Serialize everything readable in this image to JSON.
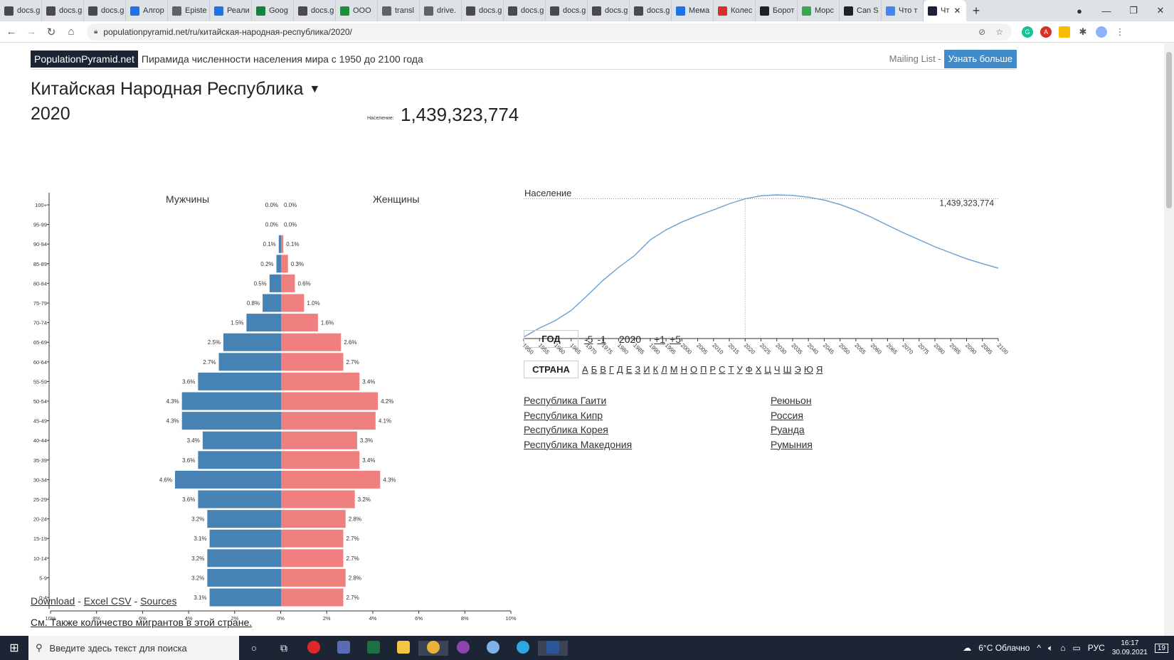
{
  "browser": {
    "tabs": [
      {
        "label": "docs.g",
        "color": "#4a4a4a"
      },
      {
        "label": "docs.g",
        "color": "#4a4a4a"
      },
      {
        "label": "docs.g",
        "color": "#4a4a4a"
      },
      {
        "label": "Алгор",
        "color": "#1a73e8"
      },
      {
        "label": "Episte",
        "color": "#5f6368"
      },
      {
        "label": "Реали",
        "color": "#1a73e8"
      },
      {
        "label": "Goog",
        "color": "#188038"
      },
      {
        "label": "docs.g",
        "color": "#4a4a4a"
      },
      {
        "label": "ООО",
        "color": "#1e8e3e"
      },
      {
        "label": "transl",
        "color": "#5f6368"
      },
      {
        "label": "drive.",
        "color": "#5f6368"
      },
      {
        "label": "docs.g",
        "color": "#4a4a4a"
      },
      {
        "label": "docs.g",
        "color": "#4a4a4a"
      },
      {
        "label": "docs.g",
        "color": "#4a4a4a"
      },
      {
        "label": "docs.g",
        "color": "#4a4a4a"
      },
      {
        "label": "docs.g",
        "color": "#4a4a4a"
      },
      {
        "label": "Мема",
        "color": "#1a73e8"
      },
      {
        "label": "Колес",
        "color": "#d93025"
      },
      {
        "label": "Борот",
        "color": "#202124"
      },
      {
        "label": "Морс",
        "color": "#34a853"
      },
      {
        "label": "Can S",
        "color": "#202124"
      },
      {
        "label": "Что т",
        "color": "#4285f4"
      },
      {
        "label": "Чт",
        "color": "#1b2433",
        "active": true
      }
    ],
    "new_tab": "+",
    "url": "populationpyramid.net/ru/китайская-народная-республика/2020/"
  },
  "header": {
    "logo": "PopulationPyramid.net",
    "tagline": "Пирамида численности населения мира с 1950 до 2100 года",
    "mailing": "Mailing List -",
    "learn_more": "Узнать больше"
  },
  "country": {
    "name": "Китайская Народная Республика",
    "year": "2020",
    "pop_label": "Население:",
    "pop_value": "1,439,323,774"
  },
  "chart_data": [
    {
      "type": "bar",
      "subtype": "population-pyramid",
      "title_left": "Мужчины",
      "title_right": "Женщины",
      "categories": [
        "0-4",
        "5-9",
        "10-14",
        "15-19",
        "20-24",
        "25-29",
        "30-34",
        "35-39",
        "40-44",
        "45-49",
        "50-54",
        "55-59",
        "60-64",
        "65-69",
        "70-74",
        "75-79",
        "80-84",
        "85-89",
        "90-94",
        "95-99",
        "100+"
      ],
      "series": [
        {
          "name": "Мужчины",
          "values": [
            3.1,
            3.2,
            3.2,
            3.1,
            3.2,
            3.6,
            4.6,
            3.6,
            3.4,
            4.3,
            4.3,
            3.6,
            2.7,
            2.5,
            1.5,
            0.8,
            0.5,
            0.2,
            0.1,
            0.0,
            0.0
          ],
          "color": "#4682b4"
        },
        {
          "name": "Женщины",
          "values": [
            2.7,
            2.8,
            2.7,
            2.7,
            2.8,
            3.2,
            4.3,
            3.4,
            3.3,
            4.1,
            4.2,
            3.4,
            2.7,
            2.6,
            1.6,
            1.0,
            0.6,
            0.3,
            0.1,
            0.0,
            0.0
          ],
          "color": "#f08080"
        }
      ],
      "x_ticks": [
        "10%",
        "8%",
        "6%",
        "4%",
        "2%",
        "0%",
        "2%",
        "4%",
        "6%",
        "8%",
        "10%"
      ],
      "xlim": [
        -10,
        10
      ]
    },
    {
      "type": "line",
      "title": "Население",
      "x": [
        1950,
        1955,
        1960,
        1965,
        1970,
        1975,
        1980,
        1985,
        1990,
        1995,
        2000,
        2005,
        2010,
        2015,
        2020,
        2025,
        2030,
        2035,
        2040,
        2045,
        2050,
        2055,
        2060,
        2065,
        2070,
        2075,
        2080,
        2085,
        2090,
        2095,
        2100
      ],
      "x_ticks": [
        "1950",
        "1955",
        "1960",
        "1965",
        "1970",
        "1975",
        "1980",
        "1985",
        "1990",
        "1995",
        "2000",
        "2005",
        "2010",
        "2015",
        "2020",
        "2025",
        "2030",
        "2035",
        "2040",
        "2045",
        "2050",
        "2055",
        "2060",
        "2065",
        "2070",
        "2075",
        "2080",
        "2085",
        "2090",
        "2095",
        "2100"
      ],
      "series": [
        {
          "values": [
            554,
            612,
            660,
            724,
            818,
            916,
            1000,
            1075,
            1176,
            1240,
            1290,
            1331,
            1368,
            1407,
            1439,
            1458,
            1464,
            1461,
            1449,
            1431,
            1402,
            1365,
            1320,
            1270,
            1222,
            1177,
            1132,
            1093,
            1055,
            1024,
            995
          ],
          "color": "#6a9fd3"
        }
      ],
      "highlight": {
        "x": 2020,
        "label": "1,439,323,774"
      },
      "ylim": [
        554,
        1464
      ]
    }
  ],
  "controls": {
    "year_btn": "ГОД",
    "m5": "-5",
    "m1": "-1",
    "current": "2020",
    "p1": "+1",
    "p5": "+5",
    "country_btn": "СТРАНА",
    "letters": [
      "А",
      "Б",
      "В",
      "Г",
      "Д",
      "Е",
      "З",
      "И",
      "К",
      "Л",
      "М",
      "Н",
      "О",
      "П",
      "Р",
      "С",
      "Т",
      "У",
      "Ф",
      "Х",
      "Ц",
      "Ч",
      "Ш",
      "Э",
      "Ю",
      "Я"
    ]
  },
  "countries_left": [
    "Республика Гаити",
    "Республика Кипр",
    "Республика Корея",
    "Республика Македония"
  ],
  "countries_right": [
    "Реюньон",
    "Россия",
    "Руанда",
    "Румыния"
  ],
  "footer": {
    "download": "Download",
    "sep1": " - ",
    "csv": "Excel CSV",
    "sep2": " - ",
    "sources": "Sources",
    "migrants": "См. Также количество мигрантов в этой стране."
  },
  "taskbar": {
    "search_placeholder": "Введите здесь текст для поиска",
    "weather": "6°C  Облачно",
    "lang": "РУС",
    "time": "16:17",
    "date": "30.09.2021",
    "notif_count": "19"
  }
}
